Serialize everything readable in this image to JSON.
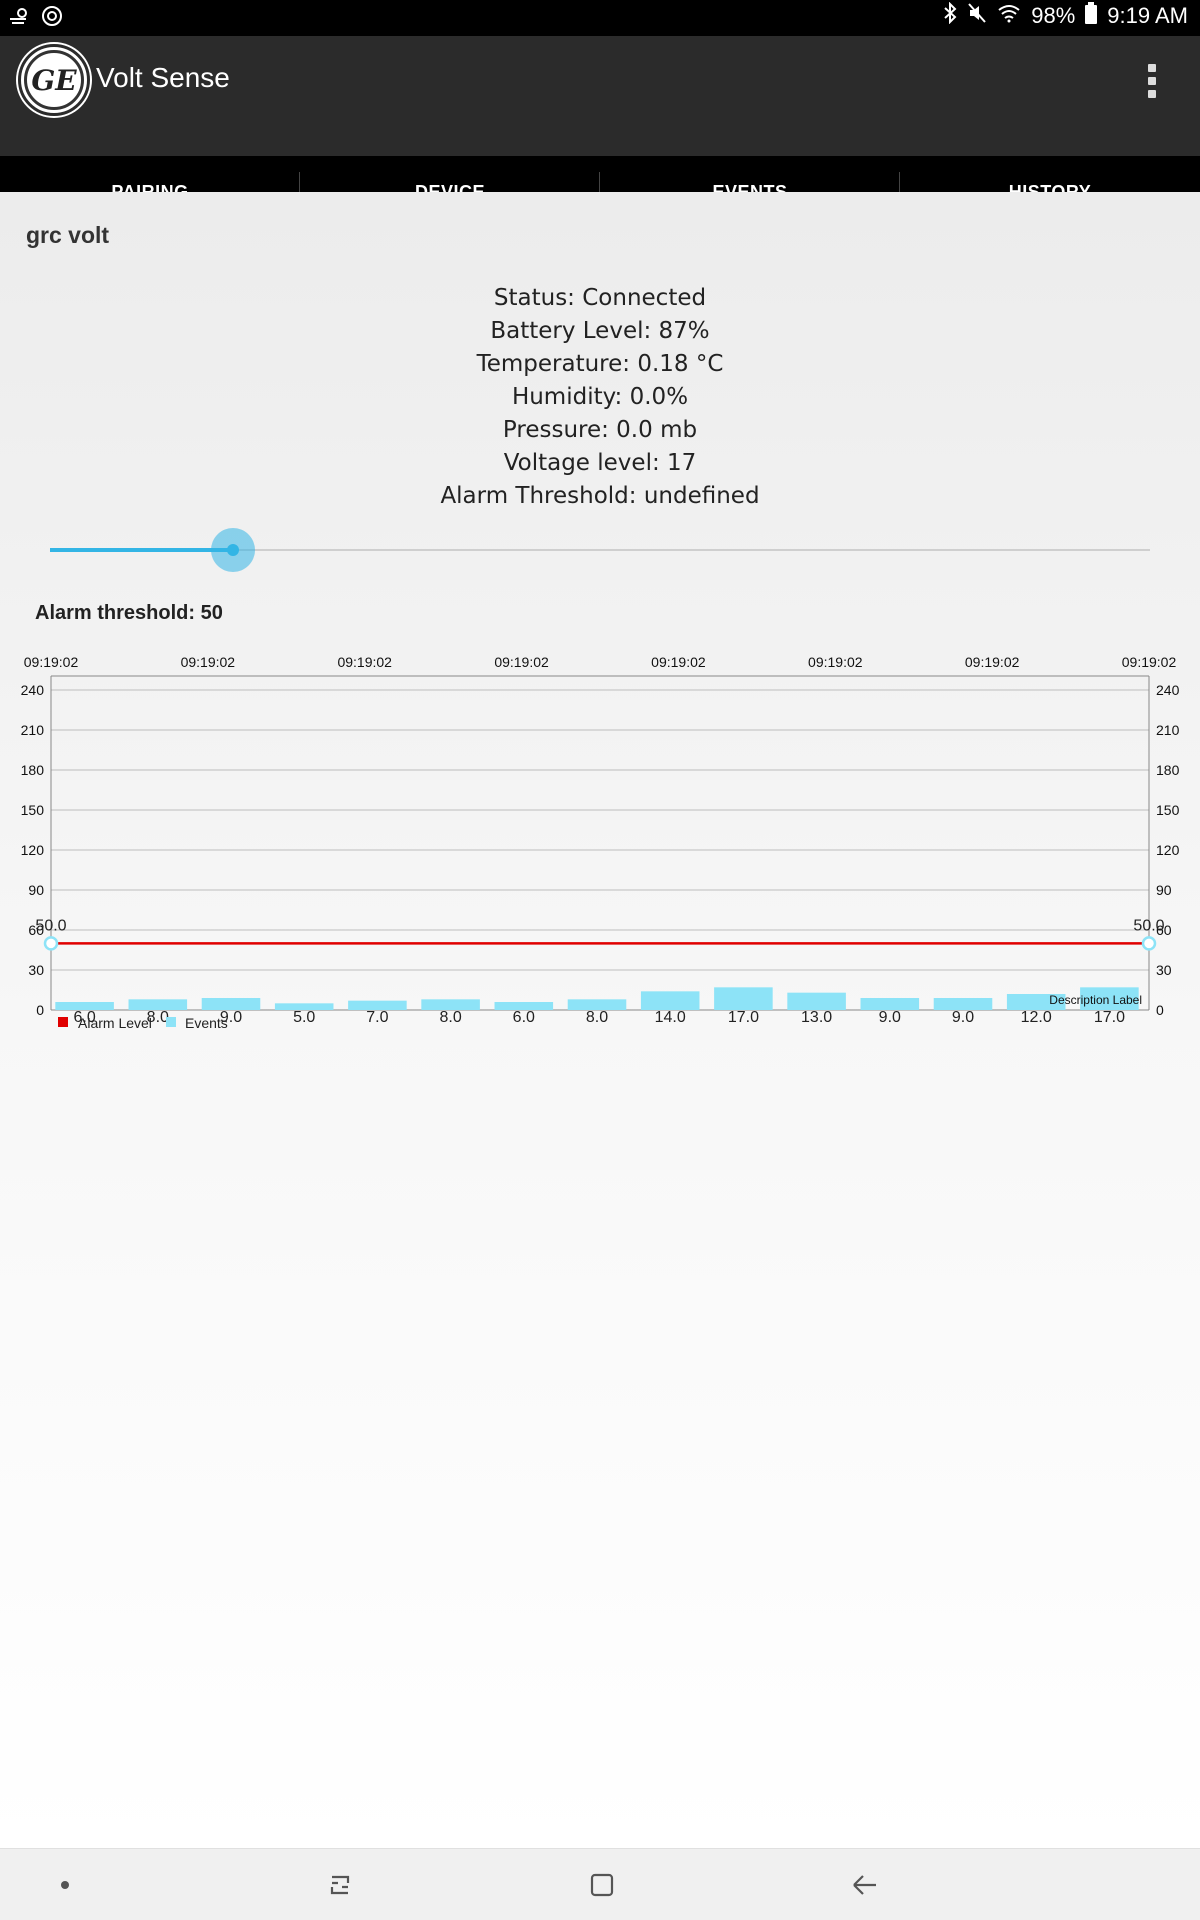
{
  "status_bar": {
    "battery_percent": "98%",
    "time": "9:19 AM",
    "icons": [
      "weather-icon",
      "sync-icon",
      "bluetooth-icon",
      "mute-icon",
      "wifi-icon",
      "battery-icon"
    ]
  },
  "app_bar": {
    "title": "Volt Sense",
    "logo_text": "GE",
    "menu_icon": "overflow-menu-icon"
  },
  "tabs": [
    {
      "label": "PAIRING",
      "active": false
    },
    {
      "label": "DEVICE",
      "active": true
    },
    {
      "label": "EVENTS",
      "active": false
    },
    {
      "label": "HISTORY",
      "active": false
    }
  ],
  "device": {
    "name": "grc volt",
    "info": [
      "Status: Connected",
      "Battery Level: 87%",
      "Temperature: 0.18 °C",
      "Humidity: 0.0%",
      "Pressure: 0.0 mb",
      "Voltage level: 17",
      "Alarm Threshold: undefined"
    ]
  },
  "slider": {
    "value": 50,
    "min": 0,
    "max": 300,
    "accent": "#33b5e5"
  },
  "threshold_label": "Alarm threshold: 50",
  "chart_data": {
    "type": "bar",
    "x_top_labels": [
      "09:19:02",
      "09:19:02",
      "09:19:02",
      "09:19:02",
      "09:19:02",
      "09:19:02",
      "09:19:02",
      "09:19:02"
    ],
    "y_ticks": [
      0,
      30,
      60,
      90,
      120,
      150,
      180,
      210,
      240
    ],
    "ylim": [
      0,
      240
    ],
    "grid": true,
    "series": [
      {
        "name": "Alarm Level",
        "type": "line",
        "color": "#e00000",
        "values": [
          50.0,
          50.0
        ],
        "labels": [
          "50.0",
          "50.0"
        ]
      },
      {
        "name": "Events",
        "type": "bar",
        "color": "#8de3f7",
        "values": [
          6.0,
          8.0,
          9.0,
          5.0,
          7.0,
          8.0,
          6.0,
          8.0,
          14.0,
          17.0,
          13.0,
          9.0,
          9.0,
          12.0,
          17.0
        ]
      }
    ],
    "legend": {
      "position": "bottom-left"
    },
    "description": "Description Label"
  },
  "nav_bar": {
    "icons": [
      "recents-dot-icon",
      "recent-apps-icon",
      "home-icon",
      "back-icon"
    ]
  }
}
